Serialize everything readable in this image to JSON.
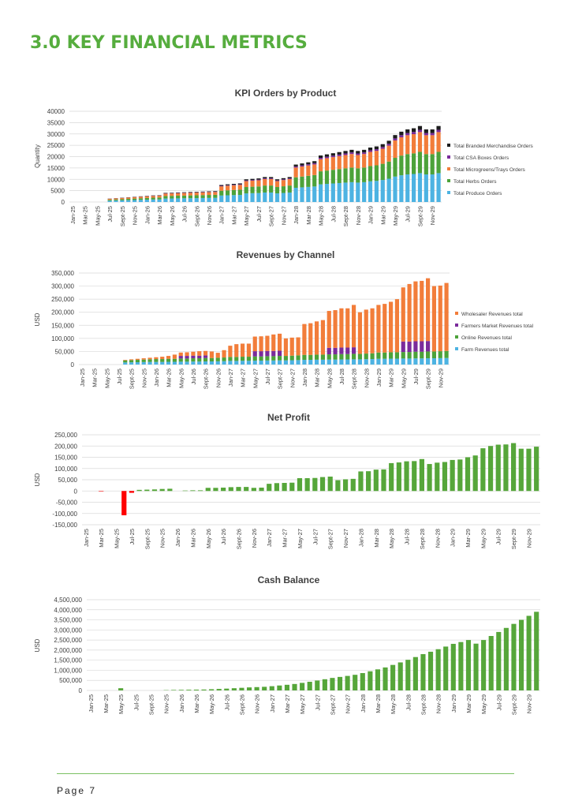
{
  "page": {
    "heading": "3.0 KEY FINANCIAL METRICS",
    "footer": "Page 7"
  },
  "chart_data": [
    {
      "type": "stacked_bar",
      "title": "KPI Orders by Product",
      "y_label": "Quantity",
      "categories": [
        "Jan-25",
        null,
        "Mar-25",
        null,
        "May-25",
        null,
        "Jul-25",
        null,
        "Sept-25",
        null,
        "Nov-25",
        null,
        "Jan-26",
        null,
        "Mar-26",
        null,
        "May-26",
        null,
        "Jul-26",
        null,
        "Sept-26",
        null,
        "Nov-26",
        null,
        "Jan-27",
        null,
        "Mar-27",
        null,
        "May-27",
        null,
        "Jul-27",
        null,
        "Sept-27",
        null,
        "Nov-27",
        null,
        "Jan-28",
        null,
        "Mar-28",
        null,
        "May-28",
        null,
        "Jul-28",
        null,
        "Sept-28",
        null,
        "Nov-28",
        null,
        "Jan-29",
        null,
        "Mar-29",
        null,
        "May-29",
        null,
        "Jul-29",
        null,
        "Sept-29",
        null,
        "Nov-29",
        null
      ],
      "ylim": [
        0,
        40000
      ],
      "yticks": [
        0,
        5000,
        10000,
        15000,
        20000,
        25000,
        30000,
        35000,
        40000
      ],
      "grid": true,
      "legend": "right",
      "series": [
        {
          "name": "Total Produce Orders",
          "color": "#4db3e2",
          "values": [
            0,
            0,
            0,
            0,
            0,
            0,
            570,
            650,
            720,
            800,
            870,
            950,
            1030,
            1100,
            1140,
            1520,
            1560,
            1600,
            1630,
            1670,
            1710,
            1750,
            1790,
            1820,
            2850,
            2960,
            3040,
            3120,
            3800,
            3880,
            3950,
            4180,
            4180,
            3800,
            3990,
            4180,
            6270,
            6460,
            6650,
            6840,
            7790,
            7980,
            8170,
            8360,
            8550,
            8740,
            8550,
            8740,
            9120,
            9310,
            9690,
            10260,
            11210,
            11780,
            12160,
            12350,
            12730,
            12160,
            12160,
            12730
          ]
        },
        {
          "name": "Total Herbs Orders",
          "color": "#4ca23a",
          "values": [
            0,
            0,
            0,
            0,
            0,
            0,
            420,
            480,
            530,
            590,
            640,
            700,
            760,
            810,
            840,
            1120,
            1150,
            1180,
            1200,
            1230,
            1260,
            1290,
            1320,
            1340,
            2100,
            2180,
            2240,
            2300,
            2800,
            2860,
            2910,
            3080,
            3080,
            2800,
            2940,
            3080,
            4620,
            4760,
            4900,
            5040,
            5740,
            5880,
            6020,
            6160,
            6300,
            6440,
            6300,
            6440,
            6720,
            6860,
            7140,
            7560,
            8260,
            8680,
            8960,
            9100,
            9380,
            8960,
            8960,
            9380
          ]
        },
        {
          "name": "Total Microgreens/Trays Orders",
          "color": "#f27d3a",
          "values": [
            0,
            0,
            0,
            0,
            0,
            0,
            390,
            440,
            490,
            550,
            600,
            650,
            700,
            750,
            780,
            1040,
            1070,
            1090,
            1120,
            1140,
            1170,
            1200,
            1220,
            1250,
            1950,
            2030,
            2080,
            2130,
            2600,
            2650,
            2700,
            2860,
            2860,
            2600,
            2730,
            2860,
            4290,
            4420,
            4550,
            4680,
            5330,
            5460,
            5590,
            5720,
            5850,
            5980,
            5850,
            5980,
            6240,
            6370,
            6630,
            7020,
            7670,
            8060,
            8320,
            8450,
            8710,
            8320,
            8320,
            8710
          ]
        },
        {
          "name": "Total CSA Boxes Orders",
          "color": "#7a2b9b",
          "values": [
            0,
            0,
            0,
            0,
            0,
            0,
            50,
            50,
            60,
            60,
            70,
            80,
            80,
            90,
            90,
            120,
            120,
            130,
            130,
            130,
            140,
            140,
            140,
            140,
            230,
            230,
            240,
            250,
            300,
            310,
            310,
            330,
            330,
            300,
            320,
            330,
            500,
            510,
            530,
            540,
            620,
            630,
            650,
            660,
            680,
            690,
            680,
            690,
            720,
            740,
            770,
            810,
            890,
            930,
            960,
            980,
            1010,
            960,
            960,
            1010
          ]
        },
        {
          "name": "Total Branded Merchandise Orders",
          "color": "#1c1c1c",
          "values": [
            0,
            0,
            0,
            0,
            0,
            0,
            70,
            80,
            100,
            100,
            120,
            120,
            130,
            150,
            150,
            200,
            200,
            200,
            220,
            230,
            220,
            220,
            230,
            250,
            370,
            400,
            400,
            400,
            500,
            500,
            530,
            550,
            550,
            500,
            520,
            550,
            820,
            850,
            870,
            900,
            1020,
            1050,
            1070,
            1100,
            1120,
            1150,
            1120,
            1150,
            1200,
            1220,
            1270,
            1350,
            1470,
            1550,
            1600,
            1620,
            1670,
            1600,
            1600,
            1670
          ]
        }
      ]
    },
    {
      "type": "stacked_bar",
      "title": "Revenues by Channel",
      "y_label": "USD",
      "categories": [
        "Jan-25",
        null,
        "Mar-25",
        null,
        "May-25",
        null,
        "Jul-25",
        null,
        "Sept-25",
        null,
        "Nov-25",
        null,
        "Jan-26",
        null,
        "Mar-26",
        null,
        "May-26",
        null,
        "Jul-26",
        null,
        "Sept-26",
        null,
        "Nov-26",
        null,
        "Jan-27",
        null,
        "Mar-27",
        null,
        "May-27",
        null,
        "Jul-27",
        null,
        "Sept-27",
        null,
        "Nov-27",
        null,
        "Jan-28",
        null,
        "Mar-28",
        null,
        "May-28",
        null,
        "Jul-28",
        null,
        "Sept-28",
        null,
        "Nov-28",
        null,
        "Jan-29",
        null,
        "Mar-29",
        null,
        "May-29",
        null,
        "Jul-29",
        null,
        "Sept-29",
        null,
        "Nov-29",
        null
      ],
      "ylim": [
        0,
        350000
      ],
      "yticks": [
        0,
        {
          "value": 50000,
          "label": "50,000"
        },
        {
          "value": 100000,
          "label": "100,000"
        },
        {
          "value": 150000,
          "label": "150,000"
        },
        {
          "value": 200000,
          "label": "200,000"
        },
        {
          "value": 250000,
          "label": "250,000"
        },
        {
          "value": 300000,
          "label": "300,000"
        },
        {
          "value": 350000,
          "label": "350,000"
        }
      ],
      "grid": true,
      "legend": "right",
      "series": [
        {
          "name": "Farm Revenues total",
          "color": "#4db3e2",
          "values": [
            0,
            0,
            0,
            0,
            0,
            0,
            0,
            8000,
            8500,
            9000,
            9500,
            10000,
            10000,
            10000,
            10500,
            10500,
            11000,
            11000,
            11500,
            11500,
            12000,
            12000,
            12500,
            13000,
            14000,
            14000,
            14500,
            14500,
            15000,
            15000,
            15500,
            15500,
            16000,
            16000,
            16500,
            17000,
            18000,
            18000,
            18500,
            18500,
            19000,
            19000,
            19500,
            19500,
            20000,
            20000,
            20500,
            21000,
            22000,
            22000,
            22500,
            22500,
            23000,
            23000,
            23500,
            23500,
            24000,
            24000,
            24500,
            25000
          ]
        },
        {
          "name": "Online Revenues total",
          "color": "#4ca23a",
          "values": [
            0,
            0,
            0,
            0,
            0,
            0,
            0,
            8000,
            8500,
            9000,
            9500,
            10000,
            11000,
            11000,
            11500,
            11500,
            12000,
            12000,
            12500,
            12500,
            13000,
            13000,
            13500,
            14000,
            15000,
            15000,
            15500,
            15500,
            16000,
            16000,
            16500,
            16500,
            17000,
            17000,
            17500,
            18000,
            19000,
            19000,
            19500,
            19500,
            20000,
            20000,
            20500,
            20500,
            21000,
            21000,
            21500,
            22000,
            24000,
            24000,
            24500,
            24500,
            25000,
            25000,
            25500,
            25500,
            26000,
            26000,
            26500,
            27000
          ]
        },
        {
          "name": "Farmers Market Revenues total",
          "color": "#7a2b9b",
          "values": [
            0,
            0,
            0,
            0,
            0,
            0,
            0,
            0,
            0,
            0,
            0,
            0,
            0,
            0,
            0,
            0,
            10000,
            10000,
            10000,
            10000,
            10000,
            0,
            0,
            0,
            0,
            0,
            0,
            0,
            20000,
            20000,
            20000,
            20000,
            20000,
            0,
            0,
            0,
            0,
            0,
            0,
            0,
            25000,
            25000,
            25000,
            25000,
            25000,
            0,
            0,
            0,
            0,
            0,
            0,
            0,
            40000,
            40000,
            40000,
            40000,
            40000,
            0,
            0,
            0
          ]
        },
        {
          "name": "Wholesaler Revenues total",
          "color": "#f27d3a",
          "values": [
            0,
            0,
            0,
            0,
            0,
            0,
            0,
            2000,
            3000,
            4000,
            5000,
            6000,
            7000,
            9000,
            11000,
            16000,
            13000,
            14000,
            15000,
            17000,
            17000,
            25000,
            19000,
            28000,
            43000,
            49000,
            50000,
            50000,
            56000,
            57000,
            58000,
            63000,
            65000,
            67000,
            69000,
            69000,
            118000,
            121000,
            127000,
            132000,
            141000,
            144000,
            150000,
            150000,
            162000,
            159000,
            168000,
            172000,
            182000,
            186000,
            193000,
            203000,
            207000,
            220000,
            229000,
            231000,
            240000,
            250000,
            251000,
            260000
          ]
        }
      ]
    },
    {
      "type": "bar",
      "title": "Net Profit",
      "y_label": "USD",
      "color": "#56a63a",
      "negative_color": "#ff0000",
      "categories": [
        "Jan-25",
        null,
        "Mar-25",
        null,
        "May-25",
        null,
        "Jul-25",
        null,
        "Sept-25",
        null,
        "Nov-25",
        null,
        "Jan-26",
        null,
        "Mar-26",
        null,
        "May-26",
        null,
        "Jul-26",
        null,
        "Sept-26",
        null,
        "Nov-26",
        null,
        "Jan-27",
        null,
        "Mar-27",
        null,
        "May-27",
        null,
        "Jul-27",
        null,
        "Sept-27",
        null,
        "Nov-27",
        null,
        "Jan-28",
        null,
        "Mar-28",
        null,
        "May-28",
        null,
        "Jul-28",
        null,
        "Sept-28",
        null,
        "Nov-28",
        null,
        "Jan-29",
        null,
        "Mar-29",
        null,
        "May-29",
        null,
        "Jul-29",
        null,
        "Sept-29",
        null,
        "Nov-29",
        null
      ],
      "ylim": [
        -150000,
        250000
      ],
      "yticks": [
        {
          "value": -150000,
          "label": "-150,000"
        },
        {
          "value": -100000,
          "label": "-100,000"
        },
        {
          "value": -50000,
          "label": "-50,000"
        },
        0,
        {
          "value": 50000,
          "label": "50,000"
        },
        {
          "value": 100000,
          "label": "100,000"
        },
        {
          "value": 150000,
          "label": "150,000"
        },
        {
          "value": 200000,
          "label": "200,000"
        },
        {
          "value": 250000,
          "label": "250,000"
        }
      ],
      "grid": true,
      "values": [
        0,
        0,
        -2000,
        0,
        0,
        -108000,
        -8000,
        5000,
        6000,
        7000,
        9000,
        10000,
        0,
        2000,
        3000,
        3000,
        14000,
        14000,
        15000,
        17000,
        18000,
        18000,
        14000,
        15000,
        32000,
        35000,
        36000,
        37000,
        57000,
        57000,
        58000,
        62000,
        64000,
        48000,
        52000,
        54000,
        87000,
        88000,
        95000,
        96000,
        124000,
        127000,
        132000,
        133000,
        142000,
        120000,
        126000,
        129000,
        138000,
        140000,
        150000,
        158000,
        190000,
        200000,
        206000,
        207000,
        213000,
        188000,
        188000,
        197000
      ]
    },
    {
      "type": "bar",
      "title": "Cash Balance",
      "y_label": "USD",
      "color": "#56a63a",
      "categories": [
        "Jan-25",
        null,
        "Mar-25",
        null,
        "May-25",
        null,
        "Jul-25",
        null,
        "Sept-25",
        null,
        "Nov-25",
        null,
        "Jan-26",
        null,
        "Mar-26",
        null,
        "May-26",
        null,
        "Jul-26",
        null,
        "Sept-26",
        null,
        "Nov-26",
        null,
        "Jan-27",
        null,
        "Mar-27",
        null,
        "May-27",
        null,
        "Jul-27",
        null,
        "Sept-27",
        null,
        "Nov-27",
        null,
        "Jan-28",
        null,
        "Mar-28",
        null,
        "May-28",
        null,
        "Jul-28",
        null,
        "Sept-28",
        null,
        "Nov-28",
        null,
        "Jan-29",
        null,
        "Mar-29",
        null,
        "May-29",
        null,
        "Jul-29",
        null,
        "Sept-29",
        null,
        "Nov-29",
        null
      ],
      "ylim": [
        0,
        4500000
      ],
      "yticks": [
        0,
        {
          "value": 500000,
          "label": "500,000"
        },
        {
          "value": 1000000,
          "label": "1,000,000"
        },
        {
          "value": 1500000,
          "label": "1,500,000"
        },
        {
          "value": 2000000,
          "label": "2,000,000"
        },
        {
          "value": 2500000,
          "label": "2,500,000"
        },
        {
          "value": 3000000,
          "label": "3,000,000"
        },
        {
          "value": 3500000,
          "label": "3,500,000"
        },
        {
          "value": 4000000,
          "label": "4,000,000"
        },
        {
          "value": 4500000,
          "label": "4,500,000"
        }
      ],
      "grid": true,
      "values": [
        0,
        0,
        0,
        0,
        110000,
        0,
        0,
        0,
        0,
        0,
        15000,
        25000,
        30000,
        35000,
        40000,
        45000,
        60000,
        75000,
        90000,
        110000,
        130000,
        150000,
        165000,
        180000,
        210000,
        245000,
        280000,
        320000,
        375000,
        430000,
        490000,
        555000,
        620000,
        670000,
        720000,
        775000,
        860000,
        950000,
        1045000,
        1140000,
        1265000,
        1390000,
        1520000,
        1655000,
        1800000,
        1920000,
        2045000,
        2175000,
        2310000,
        2400000,
        2500000,
        2320000,
        2500000,
        2700000,
        2900000,
        3100000,
        3300000,
        3500000,
        3700000,
        3900000
      ]
    }
  ]
}
